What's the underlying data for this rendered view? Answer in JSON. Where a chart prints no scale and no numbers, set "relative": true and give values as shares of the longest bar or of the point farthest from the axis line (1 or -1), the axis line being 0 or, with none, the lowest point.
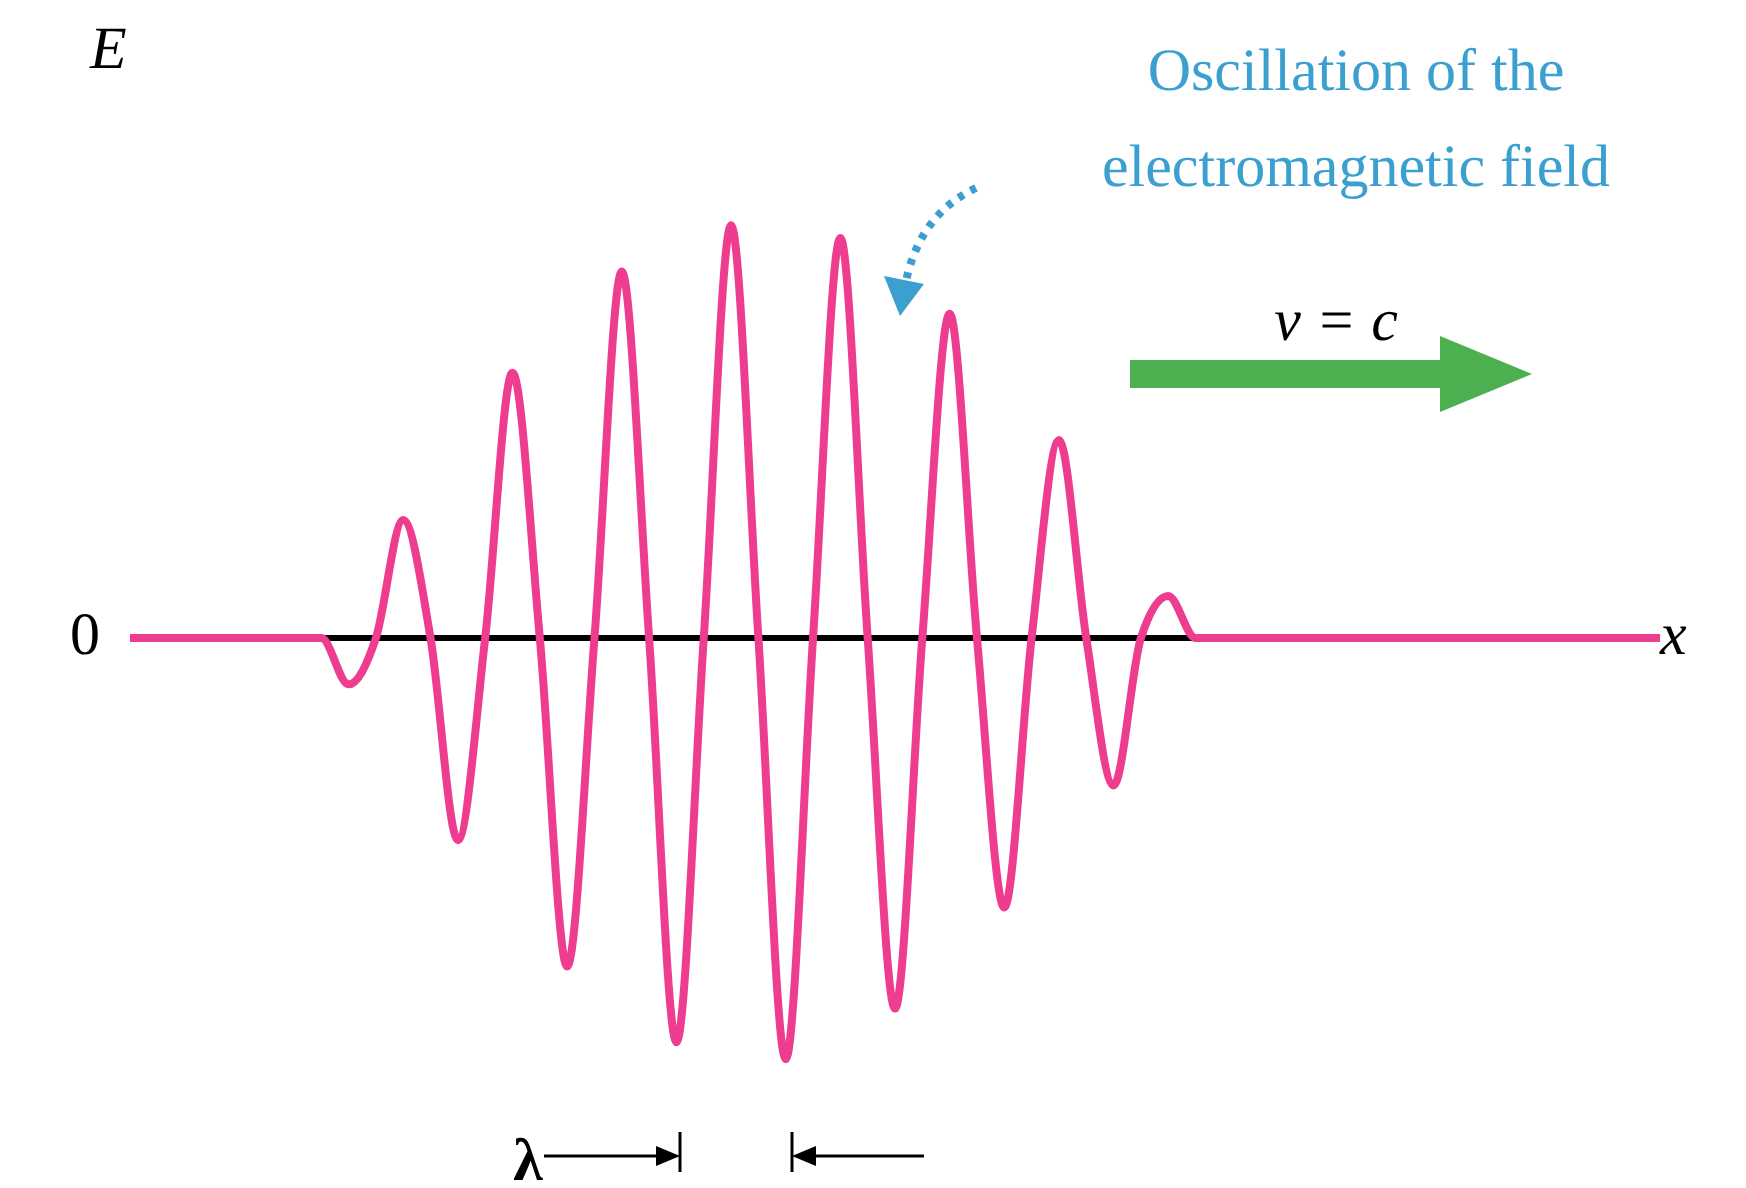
{
  "chart_data": {
    "type": "line",
    "relative": true,
    "xlabel": "x",
    "ylabel": "E",
    "categories": [
      null,
      null,
      null,
      null,
      null,
      null,
      null,
      null,
      null,
      null,
      null,
      null,
      null,
      null,
      null,
      null,
      null,
      null,
      null,
      null,
      null,
      null,
      null,
      null,
      null,
      null,
      null,
      null,
      null,
      null,
      null,
      null,
      null,
      null,
      null,
      null,
      null,
      null,
      null,
      null,
      null,
      null,
      null,
      null,
      null,
      null,
      null,
      null,
      null,
      null,
      null,
      null,
      null,
      null,
      null,
      null,
      null
    ],
    "series": [
      {
        "color": "#ee3d8f",
        "values": [
          0,
          0,
          0,
          0,
          0,
          0,
          0,
          0,
          -0.11,
          0,
          0.28,
          0,
          -0.48,
          0,
          0.63,
          0,
          -0.78,
          0,
          0.87,
          0,
          -0.96,
          0,
          0.98,
          0,
          -1,
          0,
          0.95,
          0,
          -0.88,
          0,
          0.77,
          0,
          -0.64,
          0,
          0.47,
          0,
          -0.35,
          0,
          0.1,
          0,
          0,
          0,
          0,
          0,
          0,
          0,
          0,
          0,
          0,
          0,
          0,
          0,
          0,
          0,
          0,
          0,
          0
        ]
      }
    ],
    "annotations": [
      "0",
      "Oscillation of the electromagnetic field",
      "v = c",
      "λ"
    ]
  }
}
